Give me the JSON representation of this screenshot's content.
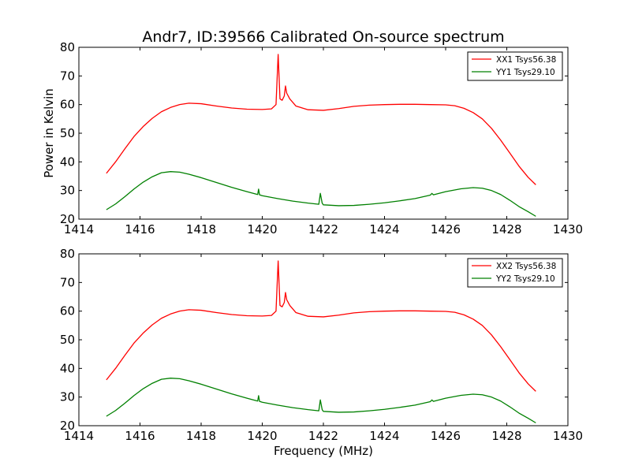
{
  "figure": {
    "title": "Andr7, ID:39566 Calibrated On-source spectrum",
    "ylabel": "Power in Kelvin",
    "xlabel": "Frequency (MHz)"
  },
  "chart_data": [
    {
      "type": "line",
      "title": "Andr7, ID:39566 Calibrated On-source spectrum",
      "xlabel": "",
      "ylabel": "Power in Kelvin",
      "xlim": [
        1414,
        1430
      ],
      "ylim": [
        20,
        80
      ],
      "xticks": [
        1414,
        1416,
        1418,
        1420,
        1422,
        1424,
        1426,
        1428,
        1430
      ],
      "yticks": [
        20,
        30,
        40,
        50,
        60,
        70,
        80
      ],
      "grid": false,
      "legend_position": "top-right",
      "series": [
        {
          "name": "XX1 Tsys56.38",
          "color": "#ff0000",
          "points": [
            [
              1414.9,
              36.0
            ],
            [
              1415.2,
              40.0
            ],
            [
              1415.5,
              44.5
            ],
            [
              1415.8,
              48.8
            ],
            [
              1416.1,
              52.3
            ],
            [
              1416.4,
              55.2
            ],
            [
              1416.7,
              57.5
            ],
            [
              1417.0,
              59.0
            ],
            [
              1417.3,
              60.0
            ],
            [
              1417.6,
              60.5
            ],
            [
              1418.0,
              60.3
            ],
            [
              1418.5,
              59.5
            ],
            [
              1419.0,
              58.8
            ],
            [
              1419.5,
              58.4
            ],
            [
              1420.0,
              58.3
            ],
            [
              1420.3,
              58.5
            ],
            [
              1420.45,
              60.0
            ],
            [
              1420.52,
              77.5
            ],
            [
              1420.58,
              62.0
            ],
            [
              1420.65,
              61.5
            ],
            [
              1420.72,
              63.0
            ],
            [
              1420.76,
              66.5
            ],
            [
              1420.8,
              64.0
            ],
            [
              1420.9,
              62.0
            ],
            [
              1421.1,
              59.5
            ],
            [
              1421.5,
              58.2
            ],
            [
              1422.0,
              58.0
            ],
            [
              1422.5,
              58.6
            ],
            [
              1423.0,
              59.4
            ],
            [
              1423.5,
              59.8
            ],
            [
              1424.0,
              60.0
            ],
            [
              1424.5,
              60.1
            ],
            [
              1425.0,
              60.1
            ],
            [
              1425.5,
              60.0
            ],
            [
              1426.0,
              59.9
            ],
            [
              1426.3,
              59.6
            ],
            [
              1426.6,
              58.7
            ],
            [
              1426.9,
              57.2
            ],
            [
              1427.2,
              55.0
            ],
            [
              1427.5,
              51.7
            ],
            [
              1427.8,
              47.6
            ],
            [
              1428.1,
              43.1
            ],
            [
              1428.4,
              38.5
            ],
            [
              1428.7,
              34.6
            ],
            [
              1428.95,
              32.0
            ]
          ]
        },
        {
          "name": "YY1 Tsys29.10",
          "color": "#008000",
          "points": [
            [
              1414.9,
              23.3
            ],
            [
              1415.2,
              25.3
            ],
            [
              1415.5,
              27.8
            ],
            [
              1415.8,
              30.5
            ],
            [
              1416.1,
              32.9
            ],
            [
              1416.4,
              34.8
            ],
            [
              1416.7,
              36.2
            ],
            [
              1417.0,
              36.6
            ],
            [
              1417.3,
              36.4
            ],
            [
              1417.6,
              35.7
            ],
            [
              1418.0,
              34.5
            ],
            [
              1418.5,
              32.8
            ],
            [
              1419.0,
              31.1
            ],
            [
              1419.5,
              29.6
            ],
            [
              1419.85,
              28.6
            ],
            [
              1419.88,
              30.5
            ],
            [
              1419.91,
              28.5
            ],
            [
              1420.0,
              28.2
            ],
            [
              1420.5,
              27.2
            ],
            [
              1421.0,
              26.3
            ],
            [
              1421.5,
              25.6
            ],
            [
              1421.85,
              25.2
            ],
            [
              1421.9,
              29.0
            ],
            [
              1421.96,
              25.6
            ],
            [
              1422.0,
              25.0
            ],
            [
              1422.5,
              24.7
            ],
            [
              1423.0,
              24.8
            ],
            [
              1423.5,
              25.2
            ],
            [
              1424.0,
              25.7
            ],
            [
              1424.5,
              26.4
            ],
            [
              1425.0,
              27.2
            ],
            [
              1425.5,
              28.4
            ],
            [
              1425.55,
              29.0
            ],
            [
              1425.6,
              28.5
            ],
            [
              1426.0,
              29.6
            ],
            [
              1426.5,
              30.6
            ],
            [
              1426.9,
              31.0
            ],
            [
              1427.2,
              30.8
            ],
            [
              1427.5,
              30.0
            ],
            [
              1427.8,
              28.6
            ],
            [
              1428.1,
              26.6
            ],
            [
              1428.4,
              24.4
            ],
            [
              1428.7,
              22.6
            ],
            [
              1428.95,
              21.0
            ]
          ]
        }
      ]
    },
    {
      "type": "line",
      "title": "",
      "xlabel": "Frequency (MHz)",
      "ylabel": "",
      "xlim": [
        1414,
        1430
      ],
      "ylim": [
        20,
        80
      ],
      "xticks": [
        1414,
        1416,
        1418,
        1420,
        1422,
        1424,
        1426,
        1428,
        1430
      ],
      "yticks": [
        20,
        30,
        40,
        50,
        60,
        70,
        80
      ],
      "grid": false,
      "legend_position": "top-right",
      "series": [
        {
          "name": "XX2 Tsys56.38",
          "color": "#ff0000",
          "points": [
            [
              1414.9,
              36.0
            ],
            [
              1415.2,
              40.0
            ],
            [
              1415.5,
              44.5
            ],
            [
              1415.8,
              48.8
            ],
            [
              1416.1,
              52.3
            ],
            [
              1416.4,
              55.2
            ],
            [
              1416.7,
              57.5
            ],
            [
              1417.0,
              59.0
            ],
            [
              1417.3,
              60.0
            ],
            [
              1417.6,
              60.5
            ],
            [
              1418.0,
              60.3
            ],
            [
              1418.5,
              59.5
            ],
            [
              1419.0,
              58.8
            ],
            [
              1419.5,
              58.4
            ],
            [
              1420.0,
              58.3
            ],
            [
              1420.3,
              58.5
            ],
            [
              1420.45,
              60.0
            ],
            [
              1420.52,
              77.5
            ],
            [
              1420.58,
              62.0
            ],
            [
              1420.65,
              61.5
            ],
            [
              1420.72,
              63.0
            ],
            [
              1420.76,
              66.5
            ],
            [
              1420.8,
              64.0
            ],
            [
              1420.9,
              62.0
            ],
            [
              1421.1,
              59.5
            ],
            [
              1421.5,
              58.2
            ],
            [
              1422.0,
              58.0
            ],
            [
              1422.5,
              58.6
            ],
            [
              1423.0,
              59.4
            ],
            [
              1423.5,
              59.8
            ],
            [
              1424.0,
              60.0
            ],
            [
              1424.5,
              60.1
            ],
            [
              1425.0,
              60.1
            ],
            [
              1425.5,
              60.0
            ],
            [
              1426.0,
              59.9
            ],
            [
              1426.3,
              59.6
            ],
            [
              1426.6,
              58.7
            ],
            [
              1426.9,
              57.2
            ],
            [
              1427.2,
              55.0
            ],
            [
              1427.5,
              51.7
            ],
            [
              1427.8,
              47.6
            ],
            [
              1428.1,
              43.1
            ],
            [
              1428.4,
              38.5
            ],
            [
              1428.7,
              34.6
            ],
            [
              1428.95,
              32.0
            ]
          ]
        },
        {
          "name": "YY2 Tsys29.10",
          "color": "#008000",
          "points": [
            [
              1414.9,
              23.3
            ],
            [
              1415.2,
              25.3
            ],
            [
              1415.5,
              27.8
            ],
            [
              1415.8,
              30.5
            ],
            [
              1416.1,
              32.9
            ],
            [
              1416.4,
              34.8
            ],
            [
              1416.7,
              36.2
            ],
            [
              1417.0,
              36.6
            ],
            [
              1417.3,
              36.4
            ],
            [
              1417.6,
              35.7
            ],
            [
              1418.0,
              34.5
            ],
            [
              1418.5,
              32.8
            ],
            [
              1419.0,
              31.1
            ],
            [
              1419.5,
              29.6
            ],
            [
              1419.85,
              28.6
            ],
            [
              1419.88,
              30.5
            ],
            [
              1419.91,
              28.5
            ],
            [
              1420.0,
              28.2
            ],
            [
              1420.5,
              27.2
            ],
            [
              1421.0,
              26.3
            ],
            [
              1421.5,
              25.6
            ],
            [
              1421.85,
              25.2
            ],
            [
              1421.9,
              29.0
            ],
            [
              1421.96,
              25.6
            ],
            [
              1422.0,
              25.0
            ],
            [
              1422.5,
              24.7
            ],
            [
              1423.0,
              24.8
            ],
            [
              1423.5,
              25.2
            ],
            [
              1424.0,
              25.7
            ],
            [
              1424.5,
              26.4
            ],
            [
              1425.0,
              27.2
            ],
            [
              1425.5,
              28.4
            ],
            [
              1425.55,
              29.0
            ],
            [
              1425.6,
              28.5
            ],
            [
              1426.0,
              29.6
            ],
            [
              1426.5,
              30.6
            ],
            [
              1426.9,
              31.0
            ],
            [
              1427.2,
              30.8
            ],
            [
              1427.5,
              30.0
            ],
            [
              1427.8,
              28.6
            ],
            [
              1428.1,
              26.6
            ],
            [
              1428.4,
              24.4
            ],
            [
              1428.7,
              22.6
            ],
            [
              1428.95,
              21.0
            ]
          ]
        }
      ]
    }
  ]
}
